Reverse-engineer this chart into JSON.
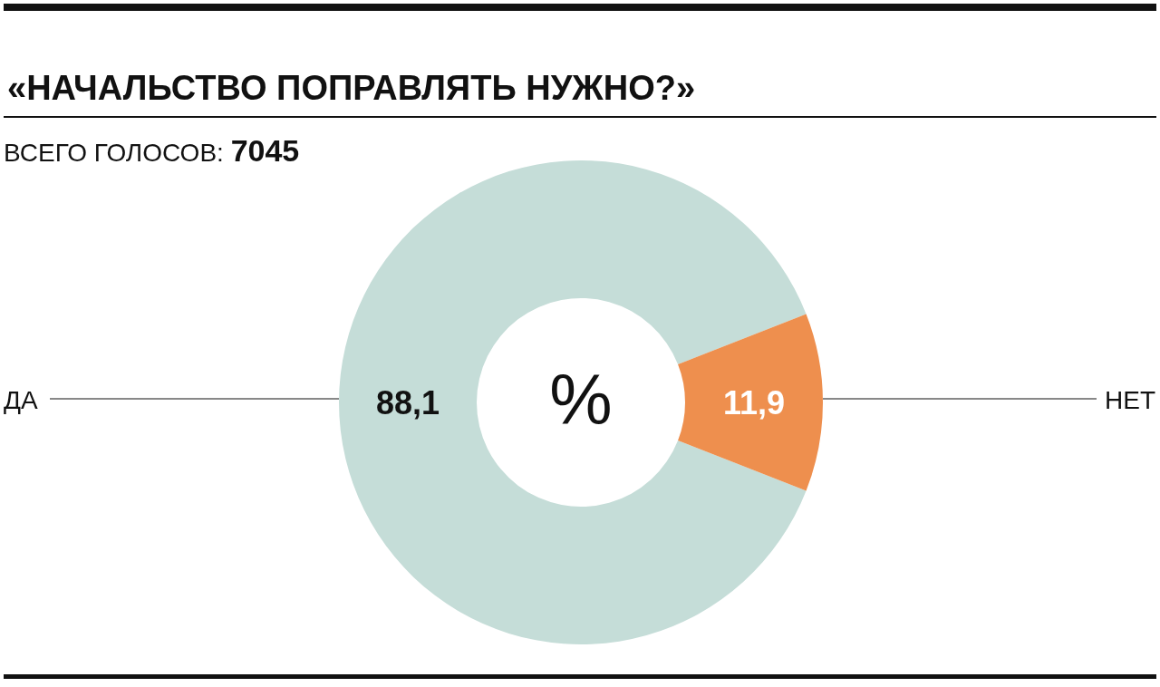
{
  "chart_data": {
    "type": "donut",
    "title": "«НАЧАЛЬСТВО ПОПРАВЛЯТЬ НУЖНО?»",
    "subtitle": "ВСЕГО ГОЛОСОВ: 7045",
    "categories": [
      "ДА",
      "НЕТ"
    ],
    "values": [
      88.1,
      11.9
    ],
    "colors": [
      "#c5ddd8",
      "#ee8f4e"
    ],
    "value_labels": [
      "88,1",
      "11,9"
    ],
    "annotations": [
      "%"
    ]
  }
}
